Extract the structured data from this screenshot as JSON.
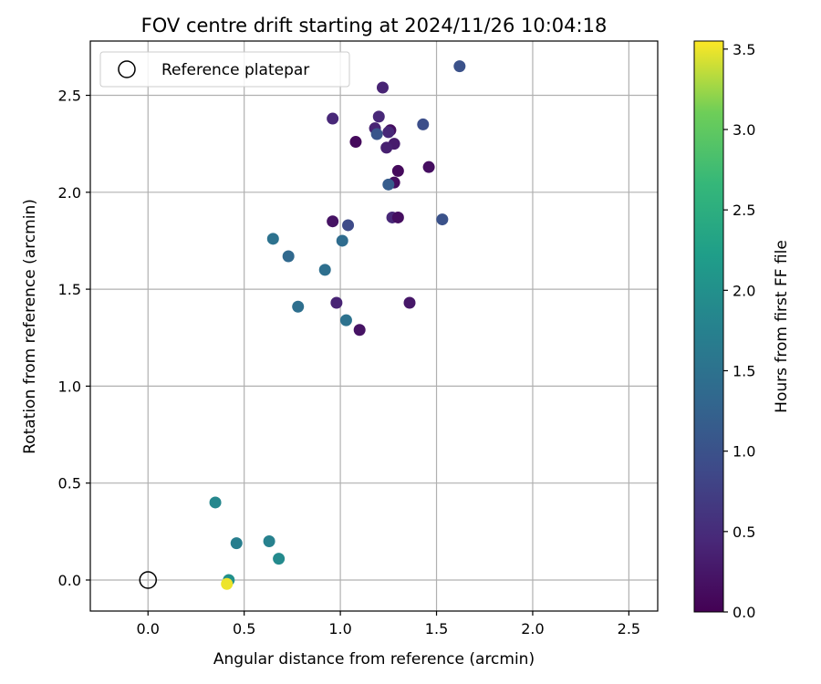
{
  "chart_data": {
    "type": "scatter",
    "title": "FOV centre drift starting at 2024/11/26 10:04:18",
    "xlabel": "Angular distance from reference (arcmin)",
    "ylabel": "Rotation from reference (arcmin)",
    "xlim": [
      -0.3,
      2.65
    ],
    "ylim": [
      -0.16,
      2.78
    ],
    "xticks": [
      0.0,
      0.5,
      1.0,
      1.5,
      2.0,
      2.5
    ],
    "yticks": [
      0.0,
      0.5,
      1.0,
      1.5,
      2.0,
      2.5
    ],
    "grid": true,
    "legend": {
      "position": "top-left",
      "entries": [
        {
          "label": "Reference platepar",
          "marker": "hollow-circle",
          "color": "#000000"
        }
      ]
    },
    "reference_point": {
      "x": 0.0,
      "y": 0.0
    },
    "colorbar": {
      "label": "Hours from first FF file",
      "colormap": "viridis",
      "range": [
        0.0,
        3.55
      ],
      "ticks": [
        0.0,
        0.5,
        1.0,
        1.5,
        2.0,
        2.5,
        3.0,
        3.5
      ]
    },
    "points": [
      {
        "x": 1.62,
        "y": 2.65,
        "t": 1.0
      },
      {
        "x": 1.22,
        "y": 2.54,
        "t": 0.4
      },
      {
        "x": 0.96,
        "y": 2.38,
        "t": 0.45
      },
      {
        "x": 1.2,
        "y": 2.39,
        "t": 0.45
      },
      {
        "x": 1.43,
        "y": 2.35,
        "t": 0.95
      },
      {
        "x": 1.18,
        "y": 2.33,
        "t": 0.4
      },
      {
        "x": 1.26,
        "y": 2.32,
        "t": 0.15
      },
      {
        "x": 1.25,
        "y": 2.31,
        "t": 0.45
      },
      {
        "x": 1.19,
        "y": 2.3,
        "t": 1.05
      },
      {
        "x": 1.08,
        "y": 2.26,
        "t": 0.1
      },
      {
        "x": 1.28,
        "y": 2.25,
        "t": 0.3
      },
      {
        "x": 1.24,
        "y": 2.23,
        "t": 0.35
      },
      {
        "x": 1.46,
        "y": 2.13,
        "t": 0.15
      },
      {
        "x": 1.3,
        "y": 2.11,
        "t": 0.1
      },
      {
        "x": 1.28,
        "y": 2.05,
        "t": 0.15
      },
      {
        "x": 1.25,
        "y": 2.04,
        "t": 1.15
      },
      {
        "x": 1.27,
        "y": 1.87,
        "t": 0.45
      },
      {
        "x": 1.3,
        "y": 1.87,
        "t": 0.15
      },
      {
        "x": 1.53,
        "y": 1.86,
        "t": 1.0
      },
      {
        "x": 0.96,
        "y": 1.85,
        "t": 0.2
      },
      {
        "x": 1.04,
        "y": 1.83,
        "t": 0.9
      },
      {
        "x": 0.65,
        "y": 1.76,
        "t": 1.5
      },
      {
        "x": 1.01,
        "y": 1.75,
        "t": 1.4
      },
      {
        "x": 0.73,
        "y": 1.67,
        "t": 1.35
      },
      {
        "x": 0.92,
        "y": 1.6,
        "t": 1.45
      },
      {
        "x": 0.98,
        "y": 1.43,
        "t": 0.4
      },
      {
        "x": 1.36,
        "y": 1.43,
        "t": 0.25
      },
      {
        "x": 0.78,
        "y": 1.41,
        "t": 1.45
      },
      {
        "x": 1.03,
        "y": 1.34,
        "t": 1.5
      },
      {
        "x": 1.1,
        "y": 1.29,
        "t": 0.2
      },
      {
        "x": 0.35,
        "y": 0.4,
        "t": 1.85
      },
      {
        "x": 0.63,
        "y": 0.2,
        "t": 1.75
      },
      {
        "x": 0.46,
        "y": 0.19,
        "t": 1.7
      },
      {
        "x": 0.68,
        "y": 0.11,
        "t": 1.9
      },
      {
        "x": 0.42,
        "y": 0.0,
        "t": 2.0
      },
      {
        "x": 0.41,
        "y": -0.02,
        "t": 3.5
      }
    ]
  }
}
